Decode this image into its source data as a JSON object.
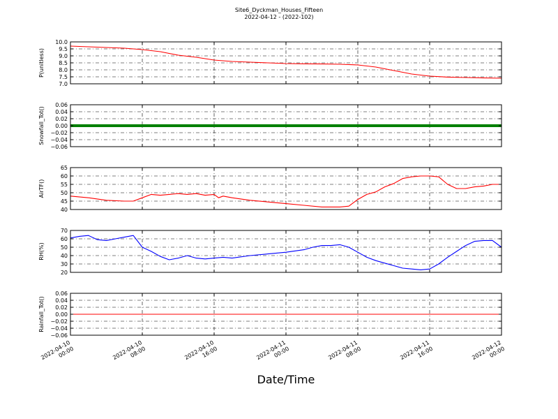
{
  "chart_data": {
    "title": "Site6_Dyckman_Houses_Fifteen",
    "subtitle": "2022-04-12 - (2022-102)",
    "xlabel": "Date/Time",
    "x_ticks": [
      "2022-04-10 00:00",
      "2022-04-10 08:00",
      "2022-04-10 16:00",
      "2022-04-11 00:00",
      "2022-04-11 08:00",
      "2022-04-11 16:00",
      "2022-04-12 00:00"
    ],
    "x_range": [
      "2022-04-10 00:00",
      "2022-04-12 00:00"
    ],
    "grid": true,
    "panels": [
      {
        "type": "line",
        "ylabel": "P(unitless)",
        "ylim": [
          7.0,
          10.0
        ],
        "yticks": [
          "7.0",
          "7.5",
          "8.0",
          "8.5",
          "9.0",
          "9.5",
          "10.0"
        ],
        "color": "#ff0000",
        "series": [
          {
            "x": [
              "2022-04-10 00:00",
              "2022-04-10 02:00",
              "2022-04-10 04:00",
              "2022-04-10 06:00",
              "2022-04-10 08:00",
              "2022-04-10 10:00",
              "2022-04-10 12:00",
              "2022-04-10 14:00",
              "2022-04-10 16:00",
              "2022-04-10 18:00",
              "2022-04-10 20:00",
              "2022-04-10 22:00",
              "2022-04-11 00:00",
              "2022-04-11 02:00",
              "2022-04-11 04:00",
              "2022-04-11 06:00",
              "2022-04-11 08:00",
              "2022-04-11 10:00",
              "2022-04-11 12:00",
              "2022-04-11 14:00",
              "2022-04-11 16:00",
              "2022-04-11 18:00",
              "2022-04-11 20:00",
              "2022-04-11 22:00",
              "2022-04-12 00:00"
            ],
            "y": [
              9.7,
              9.65,
              9.6,
              9.55,
              9.45,
              9.3,
              9.05,
              8.9,
              8.7,
              8.6,
              8.55,
              8.5,
              8.45,
              8.43,
              8.42,
              8.4,
              8.35,
              8.2,
              7.95,
              7.7,
              7.55,
              7.48,
              7.45,
              7.42,
              7.4
            ]
          }
        ]
      },
      {
        "type": "line",
        "ylabel": "Snowfall_Tot()",
        "ylim": [
          -0.06,
          0.06
        ],
        "yticks": [
          "−0.06",
          "−0.04",
          "−0.02",
          "0.00",
          "0.02",
          "0.04",
          "0.06"
        ],
        "color": "#008000",
        "thick": true,
        "series": [
          {
            "x": [
              "2022-04-10 00:00",
              "2022-04-12 00:00"
            ],
            "y": [
              0.0,
              0.0
            ]
          }
        ]
      },
      {
        "type": "line",
        "ylabel": "AirTF()",
        "ylim": [
          40,
          65
        ],
        "yticks": [
          "40",
          "45",
          "50",
          "55",
          "60",
          "65"
        ],
        "color": "#ff0000",
        "series": [
          {
            "x": [
              "2022-04-10 00:00",
              "2022-04-10 02:00",
              "2022-04-10 04:00",
              "2022-04-10 06:00",
              "2022-04-10 07:00",
              "2022-04-10 08:00",
              "2022-04-10 09:00",
              "2022-04-10 10:00",
              "2022-04-10 11:00",
              "2022-04-10 12:00",
              "2022-04-10 13:00",
              "2022-04-10 14:00",
              "2022-04-10 15:00",
              "2022-04-10 16:00",
              "2022-04-10 16:30",
              "2022-04-10 17:00",
              "2022-04-10 18:00",
              "2022-04-10 20:00",
              "2022-04-10 22:00",
              "2022-04-11 00:00",
              "2022-04-11 02:00",
              "2022-04-11 04:00",
              "2022-04-11 06:00",
              "2022-04-11 07:00",
              "2022-04-11 08:00",
              "2022-04-11 09:00",
              "2022-04-11 10:00",
              "2022-04-11 11:00",
              "2022-04-11 12:00",
              "2022-04-11 13:00",
              "2022-04-11 14:00",
              "2022-04-11 15:00",
              "2022-04-11 16:00",
              "2022-04-11 17:00",
              "2022-04-11 18:00",
              "2022-04-11 19:00",
              "2022-04-11 20:00",
              "2022-04-11 21:00",
              "2022-04-11 22:00",
              "2022-04-11 23:00",
              "2022-04-12 00:00"
            ],
            "y": [
              48,
              47,
              45.5,
              45,
              45,
              47,
              49,
              48.5,
              49,
              49.5,
              49,
              49.5,
              48.5,
              49,
              47,
              48,
              47,
              45.5,
              44.5,
              43.5,
              42.5,
              41.5,
              41.5,
              42,
              46,
              49,
              50.5,
              53.5,
              55.5,
              58.5,
              59.5,
              60,
              60,
              59.5,
              55,
              52.5,
              52.5,
              53.5,
              54,
              55,
              55
            ]
          }
        ]
      },
      {
        "type": "line",
        "ylabel": "RH(%)",
        "ylim": [
          20,
          70
        ],
        "yticks": [
          "20",
          "30",
          "40",
          "50",
          "60",
          "70"
        ],
        "color": "#0000ff",
        "series": [
          {
            "x": [
              "2022-04-10 00:00",
              "2022-04-10 01:00",
              "2022-04-10 02:00",
              "2022-04-10 03:00",
              "2022-04-10 04:00",
              "2022-04-10 05:00",
              "2022-04-10 06:00",
              "2022-04-10 07:00",
              "2022-04-10 08:00",
              "2022-04-10 09:00",
              "2022-04-10 10:00",
              "2022-04-10 11:00",
              "2022-04-10 12:00",
              "2022-04-10 13:00",
              "2022-04-10 14:00",
              "2022-04-10 15:00",
              "2022-04-10 16:00",
              "2022-04-10 17:00",
              "2022-04-10 18:00",
              "2022-04-10 20:00",
              "2022-04-10 22:00",
              "2022-04-11 00:00",
              "2022-04-11 02:00",
              "2022-04-11 03:00",
              "2022-04-11 04:00",
              "2022-04-11 05:00",
              "2022-04-11 06:00",
              "2022-04-11 07:00",
              "2022-04-11 08:00",
              "2022-04-11 09:00",
              "2022-04-11 10:00",
              "2022-04-11 11:00",
              "2022-04-11 12:00",
              "2022-04-11 13:00",
              "2022-04-11 14:00",
              "2022-04-11 15:00",
              "2022-04-11 16:00",
              "2022-04-11 17:00",
              "2022-04-11 18:00",
              "2022-04-11 19:00",
              "2022-04-11 20:00",
              "2022-04-11 21:00",
              "2022-04-11 22:00",
              "2022-04-11 23:00",
              "2022-04-12 00:00"
            ],
            "y": [
              61,
              63,
              64,
              59,
              58,
              60,
              62,
              64,
              50,
              45,
              39,
              35,
              37,
              40,
              37,
              36,
              37,
              38,
              37,
              40,
              42,
              44,
              47,
              50,
              52,
              52,
              53,
              50,
              44,
              38,
              34,
              31,
              28,
              25,
              24,
              23,
              24,
              30,
              38,
              45,
              52,
              57,
              58,
              58,
              50
            ]
          }
        ]
      },
      {
        "type": "line",
        "ylabel": "Rainfall_Tot()",
        "ylim": [
          -0.06,
          0.06
        ],
        "yticks": [
          "−0.06",
          "−0.04",
          "−0.02",
          "0.00",
          "0.02",
          "0.04",
          "0.06"
        ],
        "color": "#ff0000",
        "series": [
          {
            "x": [
              "2022-04-10 00:00",
              "2022-04-12 00:00"
            ],
            "y": [
              0.0,
              0.0
            ]
          }
        ]
      }
    ]
  }
}
